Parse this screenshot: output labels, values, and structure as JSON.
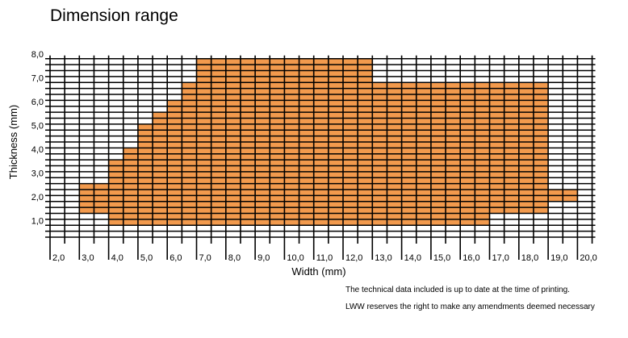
{
  "chart_data": {
    "type": "heatmap",
    "title": "Dimension range",
    "xlabel": "Width (mm)",
    "ylabel": "Thickness (mm)",
    "x_ticks": [
      "2,0",
      "3,0",
      "4,0",
      "5,0",
      "6,0",
      "7,0",
      "8,0",
      "9,0",
      "10,0",
      "11,0",
      "12,0",
      "13,0",
      "14,0",
      "15,0",
      "16,0",
      "17,0",
      "18,0",
      "19,0",
      "20,0"
    ],
    "y_ticks": [
      "1,0",
      "2,0",
      "3,0",
      "4,0",
      "5,0",
      "6,0",
      "7,0",
      "8,0"
    ],
    "xlim": [
      2.0,
      20.5
    ],
    "ylim": [
      0.5,
      8.0
    ],
    "grid": true,
    "fill_color": "#f29a4d",
    "cell_size": {
      "width_mm": 0.5,
      "thickness_mm": 0.25
    },
    "columns": [
      {
        "x": 3.0,
        "thickness": [
          1.5,
          2.75
        ]
      },
      {
        "x": 3.5,
        "thickness": [
          1.5,
          2.75
        ]
      },
      {
        "x": 4.0,
        "thickness": [
          1.0,
          3.75
        ]
      },
      {
        "x": 4.5,
        "thickness": [
          1.0,
          4.25
        ]
      },
      {
        "x": 5.0,
        "thickness": [
          1.0,
          5.25
        ]
      },
      {
        "x": 5.5,
        "thickness": [
          1.0,
          5.75
        ]
      },
      {
        "x": 6.0,
        "thickness": [
          1.0,
          6.25
        ]
      },
      {
        "x": 6.5,
        "thickness": [
          1.0,
          7.0
        ]
      },
      {
        "x": 7.0,
        "thickness": [
          1.0,
          8.0
        ]
      },
      {
        "x": 7.5,
        "thickness": [
          1.0,
          8.0
        ]
      },
      {
        "x": 8.0,
        "thickness": [
          1.0,
          8.0
        ]
      },
      {
        "x": 8.5,
        "thickness": [
          1.0,
          8.0
        ]
      },
      {
        "x": 9.0,
        "thickness": [
          1.0,
          8.0
        ]
      },
      {
        "x": 9.5,
        "thickness": [
          1.0,
          8.0
        ]
      },
      {
        "x": 10.0,
        "thickness": [
          1.0,
          8.0
        ]
      },
      {
        "x": 10.5,
        "thickness": [
          1.0,
          8.0
        ]
      },
      {
        "x": 11.0,
        "thickness": [
          1.0,
          8.0
        ]
      },
      {
        "x": 11.5,
        "thickness": [
          1.0,
          8.0
        ]
      },
      {
        "x": 12.0,
        "thickness": [
          1.0,
          8.0
        ]
      },
      {
        "x": 12.5,
        "thickness": [
          1.0,
          8.0
        ]
      },
      {
        "x": 13.0,
        "thickness": [
          1.0,
          7.0
        ]
      },
      {
        "x": 13.5,
        "thickness": [
          1.0,
          7.0
        ]
      },
      {
        "x": 14.0,
        "thickness": [
          1.0,
          7.0
        ]
      },
      {
        "x": 14.5,
        "thickness": [
          1.0,
          7.0
        ]
      },
      {
        "x": 15.0,
        "thickness": [
          1.0,
          7.0
        ]
      },
      {
        "x": 15.5,
        "thickness": [
          1.0,
          7.0
        ]
      },
      {
        "x": 16.0,
        "thickness": [
          1.0,
          7.0
        ]
      },
      {
        "x": 16.5,
        "thickness": [
          1.0,
          7.0
        ]
      },
      {
        "x": 17.0,
        "thickness": [
          1.5,
          7.0
        ]
      },
      {
        "x": 17.5,
        "thickness": [
          1.5,
          7.0
        ]
      },
      {
        "x": 18.0,
        "thickness": [
          1.5,
          7.0
        ]
      },
      {
        "x": 18.5,
        "thickness": [
          1.5,
          7.0
        ]
      },
      {
        "x": 19.0,
        "thickness": [
          2.0,
          2.5
        ]
      },
      {
        "x": 19.5,
        "thickness": [
          2.0,
          2.5
        ]
      }
    ]
  },
  "footer": {
    "note1": "The technical data included is up to date at the time of printing.",
    "note2": "LWW reserves the right to make any amendments deemed necessary"
  }
}
